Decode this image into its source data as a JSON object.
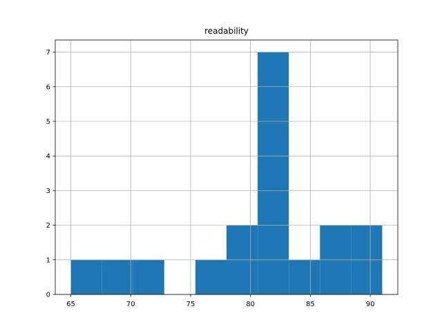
{
  "chart_data": {
    "type": "histogram",
    "title": "readability",
    "bins": [
      65,
      67.6,
      70.2,
      72.8,
      75.4,
      78,
      80.6,
      83.2,
      85.8,
      88.4,
      91
    ],
    "values": [
      1,
      1,
      1,
      0,
      1,
      2,
      7,
      1,
      2,
      2
    ],
    "color": "#1f77b4",
    "xlim": [
      63.7,
      92.3
    ],
    "xticks": [
      65,
      70,
      75,
      80,
      85,
      90
    ],
    "ylim": [
      0,
      7.35
    ],
    "yticks": [
      0,
      1,
      2,
      3,
      4,
      5,
      6,
      7
    ],
    "grid": true
  }
}
